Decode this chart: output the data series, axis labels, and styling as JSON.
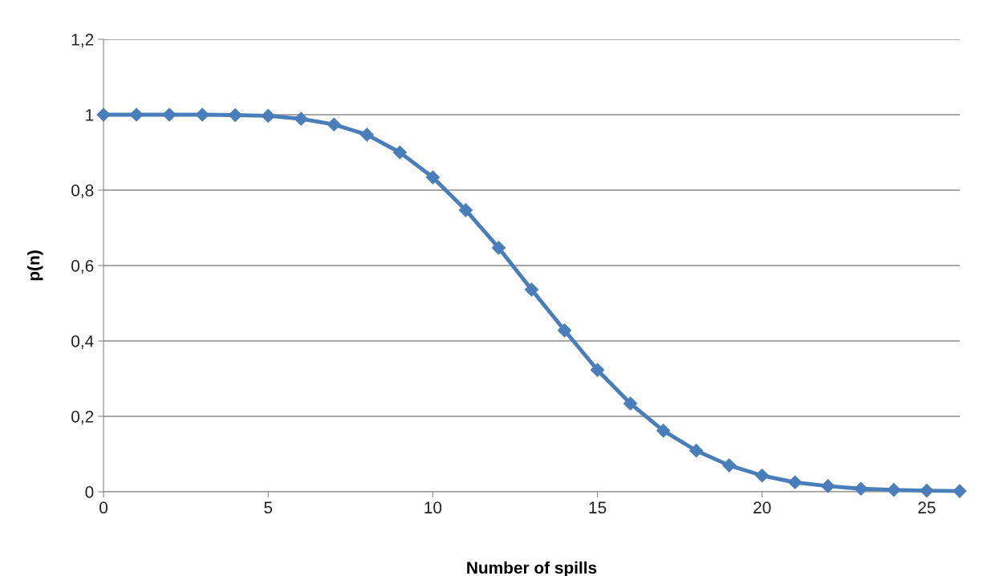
{
  "chart_data": {
    "type": "line",
    "xlabel": "Number of spills",
    "ylabel": "p(n)",
    "x": [
      0,
      1,
      2,
      3,
      4,
      5,
      6,
      7,
      8,
      9,
      10,
      11,
      12,
      13,
      14,
      15,
      16,
      17,
      18,
      19,
      20,
      21,
      22,
      23,
      24,
      25,
      26
    ],
    "series": [
      {
        "color": "#4a7ebb",
        "values": [
          1,
          1,
          1,
          1,
          0.999,
          0.997,
          0.989,
          0.974,
          0.947,
          0.9,
          0.834,
          0.747,
          0.647,
          0.536,
          0.428,
          0.323,
          0.234,
          0.162,
          0.109,
          0.07,
          0.043,
          0.025,
          0.015,
          0.008,
          0.005,
          0.003,
          0.002
        ]
      }
    ],
    "xlim": [
      0,
      26
    ],
    "xticks": [
      0,
      5,
      10,
      15,
      20,
      25
    ],
    "ylim": [
      0,
      1.2
    ],
    "yticks": [
      0,
      {
        "value": 0.2,
        "label": "0,2"
      },
      {
        "value": 0.4,
        "label": "0,4"
      },
      {
        "value": 0.6,
        "label": "0,6"
      },
      {
        "value": 0.8,
        "label": "0,8"
      },
      1,
      {
        "value": 1.2,
        "label": "1,2"
      }
    ],
    "grid": "y",
    "marker": "diamond",
    "line_style": "solid",
    "legend": false
  }
}
